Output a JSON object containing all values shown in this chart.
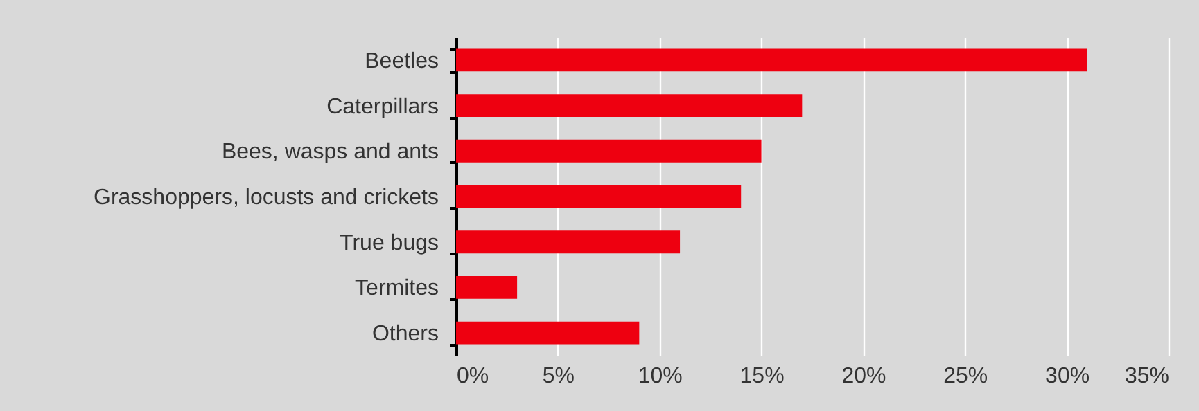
{
  "chart_data": {
    "type": "bar",
    "orientation": "horizontal",
    "categories": [
      "Beetles",
      "Caterpillars",
      "Bees, wasps and ants",
      "Grasshoppers, locusts and crickets",
      "True bugs",
      "Termites",
      "Others"
    ],
    "values": [
      31,
      17,
      15,
      14,
      11,
      3,
      9
    ],
    "color": "#ee0010",
    "xlim": [
      0,
      35
    ],
    "xticks": [
      {
        "value": 0,
        "label": "0%"
      },
      {
        "value": 5,
        "label": "5%"
      },
      {
        "value": 10,
        "label": "10%"
      },
      {
        "value": 15,
        "label": "15%"
      },
      {
        "value": 20,
        "label": "20%"
      },
      {
        "value": 25,
        "label": "25%"
      },
      {
        "value": 30,
        "label": "30%"
      },
      {
        "value": 35,
        "label": "35%"
      }
    ],
    "grid": "x"
  }
}
